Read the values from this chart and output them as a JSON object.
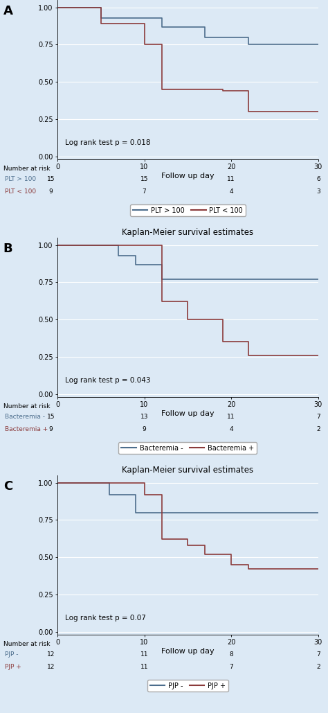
{
  "bg_color": "#dce9f5",
  "title": "Kaplan-Meier survival estimates",
  "xlabel": "Follow up day",
  "xlim": [
    0,
    30
  ],
  "ylim": [
    -0.02,
    1.05
  ],
  "yticks": [
    0.0,
    0.25,
    0.5,
    0.75,
    1.0
  ],
  "xticks": [
    0,
    10,
    20,
    30
  ],
  "color_blue": "#4c6d8c",
  "color_red": "#8b3a3a",
  "panels": [
    {
      "label": "A",
      "pvalue": "Log rank test p = 0.018",
      "line1_label": "PLT > 100",
      "line2_label": "PLT < 100",
      "line1_x": [
        0,
        5,
        5,
        12,
        12,
        17,
        17,
        22,
        22,
        30
      ],
      "line1_y": [
        1.0,
        1.0,
        0.93,
        0.93,
        0.87,
        0.87,
        0.8,
        0.8,
        0.75,
        0.75
      ],
      "line2_x": [
        0,
        5,
        5,
        10,
        10,
        12,
        12,
        19,
        19,
        22,
        22,
        30
      ],
      "line2_y": [
        1.0,
        1.0,
        0.89,
        0.89,
        0.75,
        0.75,
        0.45,
        0.45,
        0.44,
        0.44,
        0.3,
        0.3
      ],
      "risk_row1_label": "PLT > 100",
      "risk_row2_label": "PLT < 100",
      "risk_row1": [
        "15",
        "15",
        "11",
        "6"
      ],
      "risk_row2": [
        "9",
        "7",
        "4",
        "3"
      ]
    },
    {
      "label": "B",
      "pvalue": "Log rank test p = 0.043",
      "line1_label": "Bacteremia -",
      "line2_label": "Bacteremia +",
      "line1_x": [
        0,
        7,
        7,
        9,
        9,
        12,
        12,
        30
      ],
      "line1_y": [
        1.0,
        1.0,
        0.93,
        0.93,
        0.87,
        0.87,
        0.77,
        0.77
      ],
      "line2_x": [
        0,
        12,
        12,
        15,
        15,
        17,
        17,
        19,
        19,
        22,
        22,
        30
      ],
      "line2_y": [
        1.0,
        1.0,
        0.62,
        0.62,
        0.5,
        0.5,
        0.5,
        0.5,
        0.35,
        0.35,
        0.26,
        0.26
      ],
      "risk_row1_label": "Bacteremia -",
      "risk_row2_label": "Bacteremia +",
      "risk_row1": [
        "15",
        "13",
        "11",
        "7"
      ],
      "risk_row2": [
        "9",
        "9",
        "4",
        "2"
      ]
    },
    {
      "label": "C",
      "pvalue": "Log rank test p = 0.07",
      "line1_label": "PJP -",
      "line2_label": "PJP +",
      "line1_x": [
        0,
        6,
        6,
        9,
        9,
        30
      ],
      "line1_y": [
        1.0,
        1.0,
        0.92,
        0.92,
        0.8,
        0.8
      ],
      "line2_x": [
        0,
        10,
        10,
        12,
        12,
        15,
        15,
        17,
        17,
        20,
        20,
        22,
        22,
        30
      ],
      "line2_y": [
        1.0,
        1.0,
        0.92,
        0.92,
        0.62,
        0.62,
        0.58,
        0.58,
        0.52,
        0.52,
        0.45,
        0.45,
        0.42,
        0.42
      ],
      "risk_row1_label": "PJP -",
      "risk_row2_label": "PJP +",
      "risk_row1": [
        "12",
        "11",
        "8",
        "7"
      ],
      "risk_row2": [
        "12",
        "11",
        "7",
        "2"
      ]
    }
  ]
}
